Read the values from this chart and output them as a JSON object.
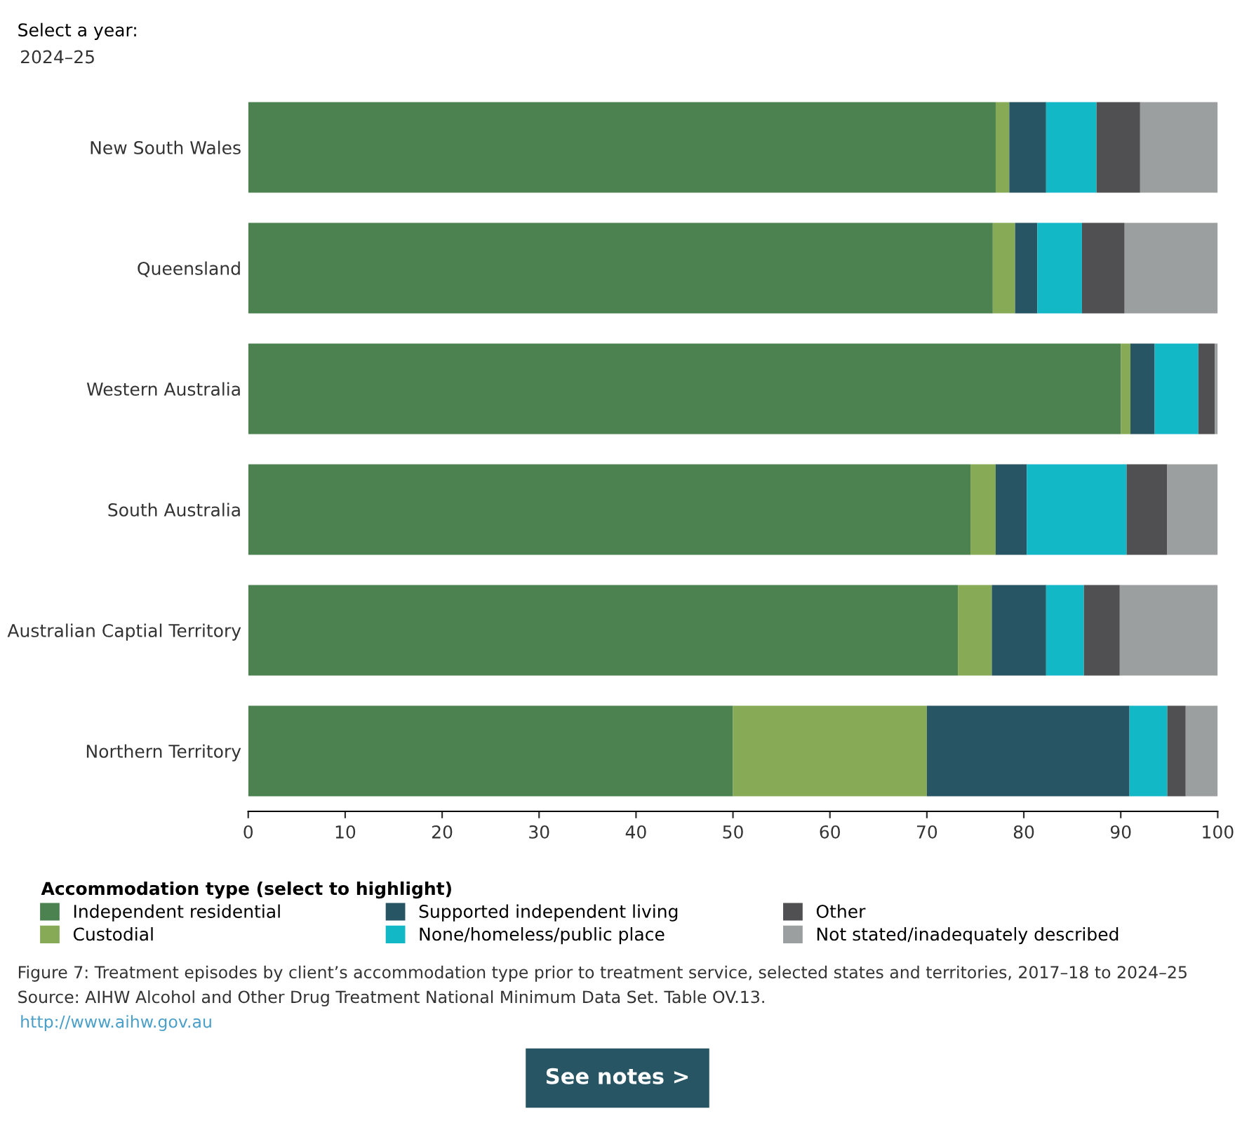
{
  "chart_data": {
    "type": "bar",
    "orientation": "horizontal",
    "stacked": true,
    "categories": [
      "New South Wales",
      "Queensland",
      "Western Australia",
      "South Australia",
      "Australian Captial Territory",
      "Northern Territory"
    ],
    "series": [
      {
        "name": "Independent residential",
        "color": "#4b8250",
        "values": [
          77.1,
          76.8,
          90.0,
          74.5,
          73.2,
          50.0
        ]
      },
      {
        "name": "Custodial",
        "color": "#86aa55",
        "values": [
          1.4,
          2.3,
          1.0,
          2.6,
          3.5,
          20.0
        ]
      },
      {
        "name": "Supported independent living",
        "color": "#285564",
        "values": [
          3.8,
          2.3,
          2.5,
          3.2,
          5.6,
          20.9
        ]
      },
      {
        "name": "None/homeless/public place",
        "color": "#13b8c6",
        "values": [
          5.2,
          4.6,
          4.5,
          10.3,
          3.9,
          3.9
        ]
      },
      {
        "name": "Other",
        "color": "#505053",
        "values": [
          4.5,
          4.4,
          1.7,
          4.2,
          3.7,
          1.9
        ]
      },
      {
        "name": "Not stated/inadequately described",
        "color": "#9b9fa0",
        "values": [
          8.0,
          9.6,
          0.3,
          5.2,
          10.1,
          3.3
        ]
      }
    ],
    "xlim": [
      0,
      100
    ],
    "xticks": [
      0,
      10,
      20,
      30,
      40,
      50,
      60,
      70,
      80,
      90,
      100
    ],
    "legend": "bottom",
    "legend_title": "Accommodation type (select to highlight)",
    "grid": false,
    "annotations": [
      "Select a year:",
      "2024–25",
      "Figure 7: Treatment episodes by client’s accommodation type prior to treatment service, selected states and territories, 2017–18 to 2024–25",
      "Source: AIHW Alcohol and Other Drug Treatment National Minimum Data Set. Table OV.13.",
      "http://www.aihw.gov.au",
      "See notes >"
    ]
  }
}
